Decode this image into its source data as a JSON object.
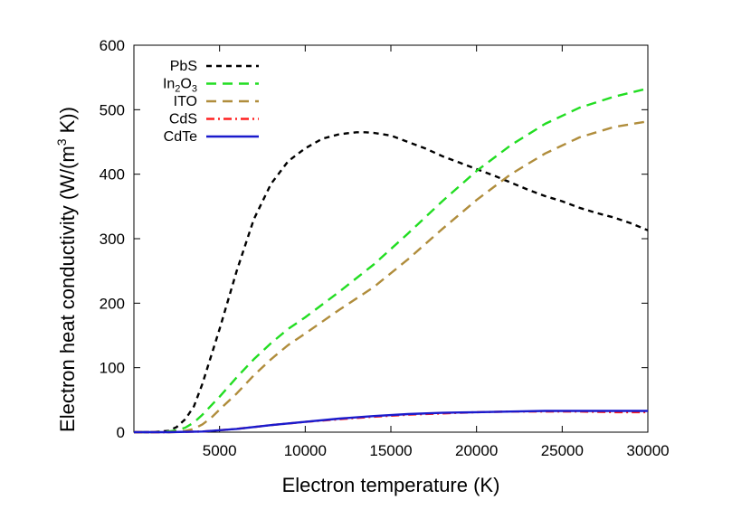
{
  "chart_data": {
    "type": "line",
    "xlabel": "Electron temperature (K)",
    "ylabel": {
      "pre": "Electron heat conductivity (W/(m",
      "sup": "3",
      "post": " K))"
    },
    "xlim": [
      0,
      30000
    ],
    "ylim": [
      0,
      600
    ],
    "xticks": [
      5000,
      10000,
      15000,
      20000,
      25000,
      30000
    ],
    "yticks": [
      0,
      100,
      200,
      300,
      400,
      500,
      600
    ],
    "grid": false,
    "legend_position": "top-left",
    "series": [
      {
        "name": "PbS",
        "color": "#000000",
        "dash": "short-dash",
        "x": [
          0,
          1000,
          2000,
          2500,
          3000,
          3500,
          4000,
          5000,
          6000,
          7000,
          8000,
          9000,
          10000,
          11000,
          12000,
          13000,
          13500,
          14000,
          15000,
          16000,
          17000,
          18000,
          19000,
          20000,
          21000,
          22000,
          23000,
          24000,
          25000,
          26000,
          27000,
          28000,
          29000,
          30000
        ],
        "y": [
          0,
          0,
          2,
          8,
          20,
          40,
          75,
          160,
          250,
          330,
          385,
          420,
          440,
          455,
          462,
          465,
          465,
          464,
          460,
          450,
          440,
          428,
          418,
          408,
          398,
          387,
          376,
          366,
          358,
          348,
          340,
          333,
          324,
          313
        ]
      },
      {
        "name": {
          "pre": "In",
          "sub1": "2",
          "mid": "O",
          "sub2": "3"
        },
        "color": "#22dd22",
        "dash": "long-dash",
        "x": [
          0,
          1000,
          2000,
          2500,
          3000,
          3500,
          4000,
          5000,
          6000,
          7000,
          8000,
          9000,
          10000,
          12000,
          14000,
          16000,
          18000,
          20000,
          22000,
          24000,
          26000,
          28000,
          30000
        ],
        "y": [
          0,
          0,
          1,
          3,
          7,
          15,
          27,
          55,
          85,
          113,
          138,
          160,
          178,
          218,
          260,
          308,
          358,
          405,
          445,
          478,
          503,
          520,
          533
        ]
      },
      {
        "name": "ITO",
        "color": "#b08d3c",
        "dash": "long-dash",
        "x": [
          0,
          1000,
          2000,
          3000,
          3500,
          4000,
          4500,
          5000,
          6000,
          7000,
          8000,
          9000,
          10000,
          12000,
          14000,
          16000,
          18000,
          20000,
          22000,
          24000,
          26000,
          28000,
          30000
        ],
        "y": [
          0,
          0,
          0,
          2,
          5,
          12,
          22,
          35,
          60,
          88,
          113,
          135,
          153,
          190,
          225,
          268,
          315,
          360,
          400,
          432,
          457,
          473,
          482
        ]
      },
      {
        "name": "CdS",
        "color": "#ff2020",
        "dash": "dash-dot",
        "x": [
          0,
          2000,
          4000,
          6000,
          8000,
          10000,
          12000,
          14000,
          16000,
          18000,
          20000,
          22000,
          24000,
          26000,
          28000,
          30000
        ],
        "y": [
          0,
          0,
          1,
          5,
          11,
          16,
          20,
          24,
          27,
          29,
          31,
          32,
          32,
          32,
          31,
          31
        ]
      },
      {
        "name": "CdTe",
        "color": "#1a1acc",
        "dash": "solid",
        "x": [
          0,
          2000,
          4000,
          6000,
          8000,
          10000,
          12000,
          14000,
          16000,
          18000,
          20000,
          22000,
          24000,
          26000,
          28000,
          30000
        ],
        "y": [
          0,
          0,
          1,
          5,
          11,
          16,
          21,
          25,
          28,
          30,
          31,
          32,
          33,
          33,
          33,
          33
        ]
      }
    ]
  }
}
